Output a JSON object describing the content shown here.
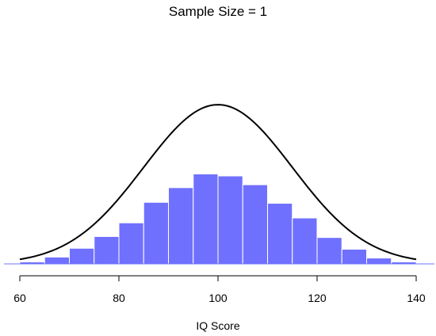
{
  "chart_data": {
    "type": "bar",
    "title": "Sample Size = 1",
    "xlabel": "IQ Score",
    "ylabel": "",
    "xlim": [
      60,
      140
    ],
    "xticks": [
      60,
      80,
      100,
      120,
      140
    ],
    "bin_width": 5,
    "bins": [
      {
        "x0": 60,
        "x1": 65,
        "value": 0.002
      },
      {
        "x0": 65,
        "x1": 70,
        "value": 0.007
      },
      {
        "x0": 70,
        "x1": 75,
        "value": 0.016
      },
      {
        "x0": 75,
        "x1": 80,
        "value": 0.028
      },
      {
        "x0": 80,
        "x1": 85,
        "value": 0.042
      },
      {
        "x0": 85,
        "x1": 90,
        "value": 0.063
      },
      {
        "x0": 90,
        "x1": 95,
        "value": 0.078
      },
      {
        "x0": 95,
        "x1": 100,
        "value": 0.092
      },
      {
        "x0": 100,
        "x1": 105,
        "value": 0.09
      },
      {
        "x0": 105,
        "x1": 110,
        "value": 0.081
      },
      {
        "x0": 110,
        "x1": 115,
        "value": 0.062
      },
      {
        "x0": 115,
        "x1": 120,
        "value": 0.047
      },
      {
        "x0": 120,
        "x1": 125,
        "value": 0.027
      },
      {
        "x0": 125,
        "x1": 130,
        "value": 0.015
      },
      {
        "x0": 130,
        "x1": 135,
        "value": 0.006
      },
      {
        "x0": 135,
        "x1": 140,
        "value": 0.002
      }
    ],
    "curve": {
      "type": "normal",
      "mean": 100,
      "sd": 15
    },
    "ylim": [
      0,
      0.27
    ],
    "grid": false,
    "bar_color": "#7070ff",
    "bar_edge_color": "#ffffff",
    "curve_color": "#000000"
  }
}
